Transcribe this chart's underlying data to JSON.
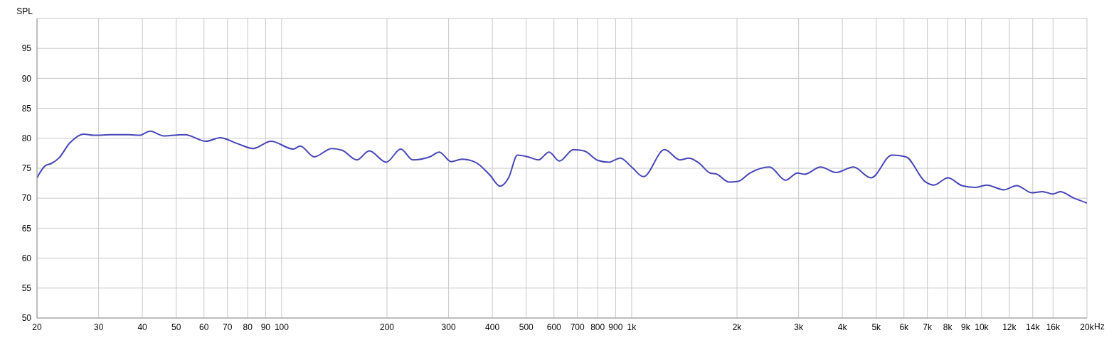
{
  "chart_data": {
    "type": "line",
    "ylabel": "SPL",
    "log": "x",
    "grid": true,
    "marker": "none",
    "xlim": [
      20,
      20000
    ],
    "ylim": [
      50,
      100
    ],
    "xticks": [
      20,
      30,
      40,
      50,
      60,
      70,
      80,
      90,
      100,
      200,
      300,
      400,
      500,
      600,
      700,
      800,
      900,
      {
        "value": 1000,
        "label": "1k"
      },
      {
        "value": 2000,
        "label": "2k"
      },
      {
        "value": 3000,
        "label": "3k"
      },
      {
        "value": 4000,
        "label": "4k"
      },
      {
        "value": 5000,
        "label": "5k"
      },
      {
        "value": 6000,
        "label": "6k"
      },
      {
        "value": 7000,
        "label": "7k"
      },
      {
        "value": 8000,
        "label": "8k"
      },
      {
        "value": 9000,
        "label": "9k"
      },
      {
        "value": 10000,
        "label": "10k"
      },
      {
        "value": 12000,
        "label": "12k"
      },
      {
        "value": 14000,
        "label": "14k"
      },
      {
        "value": 16000,
        "label": "16k"
      },
      {
        "value": 20000,
        "label": "20k"
      }
    ],
    "xlabel": "Hz",
    "yticks": [
      50,
      55,
      60,
      65,
      70,
      75,
      80,
      85,
      90,
      95
    ],
    "x": [
      20,
      21.1,
      22,
      23.1,
      24.8,
      27.2,
      29.1,
      32.7,
      36.7,
      39.3,
      42.1,
      46.1,
      53,
      60.8,
      66.7,
      74.8,
      82.8,
      93.3,
      108,
      113,
      124,
      139,
      149,
      164,
      178,
      199,
      219,
      237,
      265,
      282,
      305,
      327,
      358,
      393,
      421,
      445,
      472,
      506,
      542,
      581,
      622,
      682,
      731,
      802,
      859,
      929,
      1000,
      1081,
      1242,
      1374,
      1459,
      1563,
      1675,
      1754,
      1897,
      2014,
      2178,
      2478,
      2754,
      2978,
      3119,
      3467,
      3837,
      4305,
      4830,
      5546,
      6081,
      6886,
      7311,
      8017,
      8790,
      9638,
      10328,
      11588,
      12589,
      13932,
      14928,
      15996,
      16749,
      18365,
      20000
    ],
    "series": [
      {
        "color": "#4646b8",
        "values": [
          73.4,
          75.4,
          75.8,
          76.7,
          79.2,
          80.7,
          80.5,
          80.6,
          80.6,
          80.5,
          81.2,
          80.4,
          80.6,
          79.5,
          80.1,
          79.1,
          78.3,
          79.5,
          78.2,
          78.7,
          76.9,
          78.3,
          78.0,
          76.4,
          77.9,
          76.0,
          78.2,
          76.4,
          76.9,
          77.7,
          76.1,
          76.5,
          76.0,
          73.9,
          72.0,
          73.4,
          77.2,
          76.9,
          76.4,
          77.7,
          76.2,
          78.1,
          77.9,
          76.3,
          76.0,
          76.7,
          75.2,
          73.6,
          78.1,
          76.4,
          76.7,
          75.8,
          74.2,
          74.0,
          72.7,
          72.8,
          74.2,
          75.2,
          73.0,
          74.2,
          74.0,
          75.2,
          74.3,
          75.2,
          73.4,
          77.2,
          76.9,
          72.8,
          72.2,
          73.4,
          72.1,
          71.8,
          72.2,
          71.4,
          72.1,
          70.9,
          71.1,
          70.7,
          71.1,
          70.0,
          69.2
        ]
      }
    ]
  }
}
